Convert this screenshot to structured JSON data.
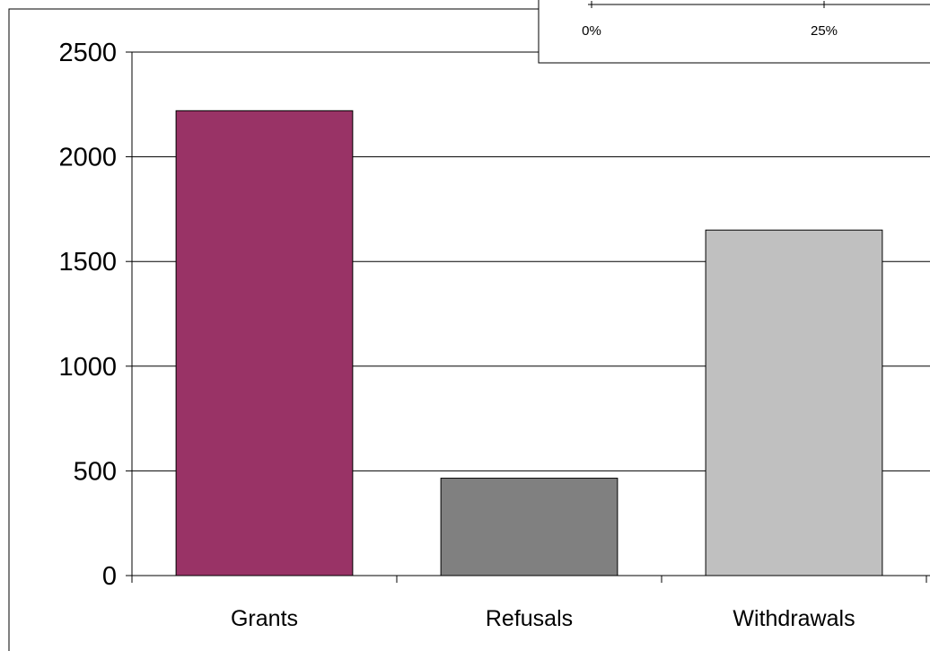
{
  "chart_data": [
    {
      "type": "bar",
      "categories": [
        "Grants",
        "Refusals",
        "Withdrawals"
      ],
      "values": [
        2220,
        465,
        1650
      ],
      "colors": [
        "#993366",
        "#808080",
        "#c0c0c0"
      ],
      "ylim": [
        0,
        2500
      ],
      "yticks": [
        "0",
        "500",
        "1000",
        "1500",
        "2000",
        "2500"
      ],
      "ytick_values": [
        0,
        500,
        1000,
        1500,
        2000,
        2500
      ],
      "grid": true,
      "title": "",
      "xlabel": "",
      "ylabel": ""
    },
    {
      "type": "bar",
      "partial": true,
      "xticks": [
        "0%",
        "25%"
      ]
    }
  ]
}
